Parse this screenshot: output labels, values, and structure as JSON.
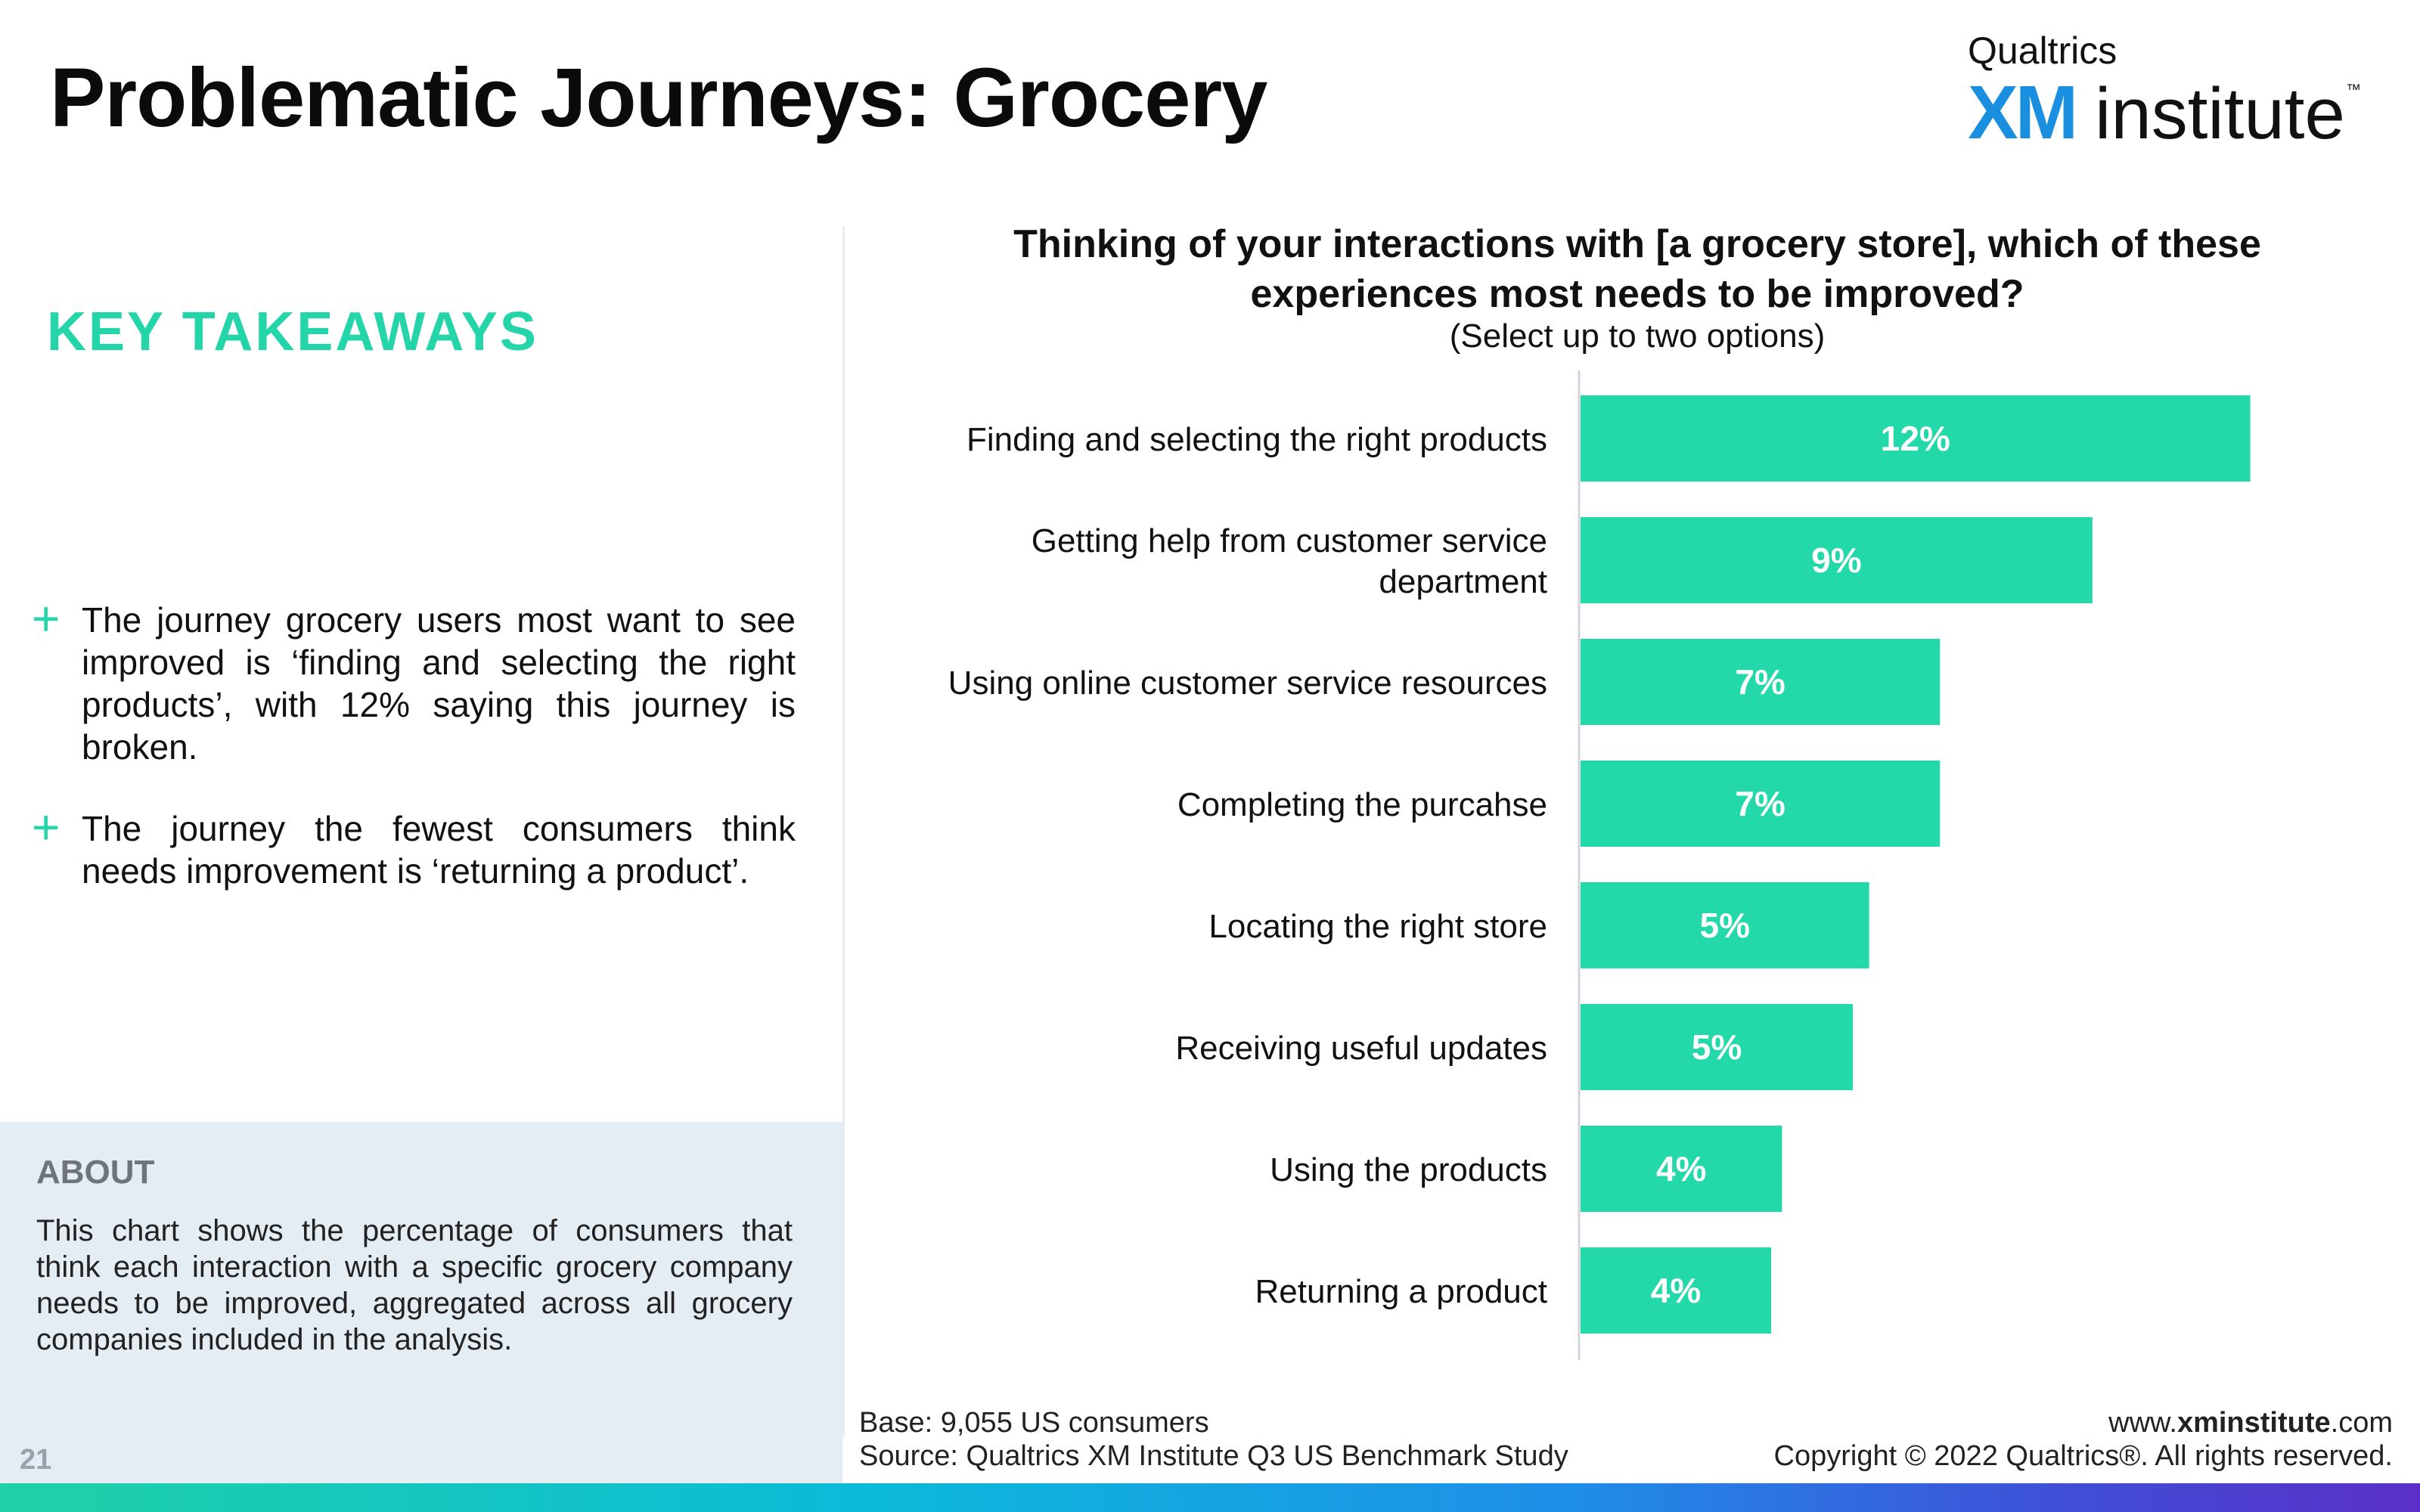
{
  "title": "Problematic Journeys: Grocery",
  "logo": {
    "company": "Qualtrics",
    "xm": "XM",
    "institute": "institute",
    "tm": "™"
  },
  "takeaways": {
    "heading": "KEY TAKEAWAYS",
    "items": [
      "The journey grocery users most want to see improved is ‘finding and selecting the right products’, with 12% saying this journey is broken.",
      "The journey the fewest consumers think needs improvement is ‘returning a product’."
    ]
  },
  "about": {
    "heading": "ABOUT",
    "text": "This chart shows the percentage of consumers that think each interaction with a specific grocery company needs to be improved, aggregated across all grocery companies included in the analysis."
  },
  "page_number": "21",
  "footer": {
    "base": "Base: 9,055 US consumers",
    "source": "Source: Qualtrics XM Institute Q3 US Benchmark Study",
    "website_prefix": "www.",
    "website_bold": "xminstitute",
    "website_suffix": ".com",
    "copyright": "Copyright © 2022 Qualtrics®. All rights reserved."
  },
  "chart_data": {
    "type": "bar",
    "orientation": "horizontal",
    "title": "Thinking of your interactions with [a grocery store], which of these experiences most needs to be improved?",
    "subtitle": "(Select up to two options)",
    "categories": [
      [
        "Finding and selecting the right products"
      ],
      [
        "Getting help from customer service",
        "department"
      ],
      [
        "Using online customer service resources"
      ],
      [
        "Completing the purcahse"
      ],
      [
        "Locating the right store"
      ],
      [
        "Receiving useful updates"
      ],
      [
        "Using the products"
      ],
      [
        "Returning a product"
      ]
    ],
    "values": [
      12.3,
      9.4,
      6.6,
      6.6,
      5.3,
      5.0,
      3.7,
      3.5
    ],
    "data_labels": [
      "12%",
      "9%",
      "7%",
      "7%",
      "5%",
      "5%",
      "4%",
      "4%"
    ],
    "bar_color": "#23d9aa",
    "label_color": "#ffffff"
  }
}
